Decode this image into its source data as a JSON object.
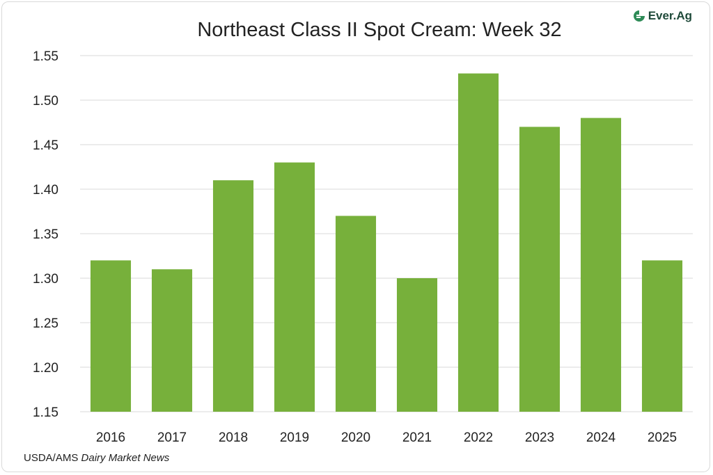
{
  "brand": {
    "name": "Ever.Ag",
    "icon": "ever-ag-logo-icon",
    "color": "#1f4a3a",
    "accent": "#2e8b57"
  },
  "source": {
    "prefix": "USDA/AMS",
    "publication": "Dairy Market News"
  },
  "colors": {
    "bar": "#77b03b",
    "grid": "#d9d9d9",
    "text": "#222222"
  },
  "chart_data": {
    "type": "bar",
    "title": "Northeast Class II Spot Cream: Week 32",
    "xlabel": "",
    "ylabel": "",
    "categories": [
      "2016",
      "2017",
      "2018",
      "2019",
      "2020",
      "2021",
      "2022",
      "2023",
      "2024",
      "2025"
    ],
    "values": [
      1.32,
      1.31,
      1.41,
      1.43,
      1.37,
      1.3,
      1.53,
      1.47,
      1.48,
      1.32
    ],
    "ylim": [
      1.15,
      1.55
    ],
    "yticks": [
      "1.15",
      "1.20",
      "1.25",
      "1.30",
      "1.35",
      "1.40",
      "1.45",
      "1.50",
      "1.55"
    ],
    "grid": true,
    "legend": "none"
  }
}
